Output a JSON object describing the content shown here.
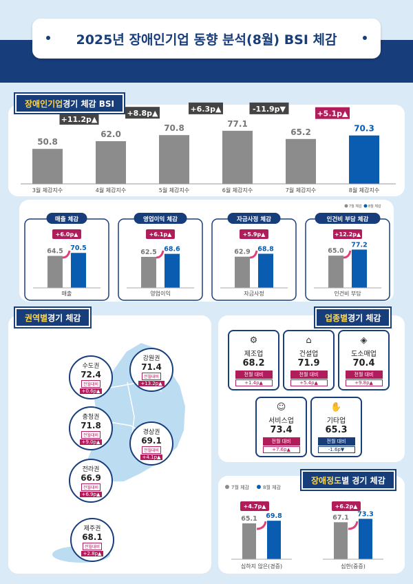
{
  "header": {
    "title": "2025년 장애인기업 동향 분석(8월) BSI 체감"
  },
  "sections": {
    "monthly": {
      "hl": "장애인기업",
      "rest": " 경기 체감 BSI"
    },
    "region": {
      "hl": "권역별",
      "rest": " 경기 체감"
    },
    "industry": {
      "hl": "업종별",
      "rest": " 경기 체감"
    },
    "disability": {
      "hl": "장애정도",
      "rest": "별 경기 체감"
    }
  },
  "chart_data": [
    {
      "type": "bar",
      "title": "장애인기업 경기 체감 BSI",
      "categories": [
        "3월 체감지수",
        "4월 체감지수",
        "5월 체감지수",
        "6월 체감지수",
        "7월 체감지수",
        "8월 체감지수"
      ],
      "values": [
        50.8,
        62.0,
        70.8,
        77.1,
        65.2,
        70.3
      ],
      "labels": [
        "50.8",
        "62.0",
        "70.8",
        "77.1",
        "65.2",
        "70.3"
      ],
      "changes": [
        "+11.2p▲",
        "+8.8p▲",
        "+6.3p▲",
        "-11.9p▼",
        "+5.1p▲"
      ],
      "highlight_color": "#0a5cb0",
      "base_color": "#8c8c8c",
      "ylim": [
        0,
        85
      ]
    },
    {
      "type": "bar",
      "legend": [
        "7월 체감",
        "8월 체감"
      ],
      "legend_position": "top-right",
      "panels": [
        {
          "title": "매출 체감",
          "category": "매출",
          "values": [
            64.5,
            70.5
          ],
          "labels": [
            "64.5",
            "70.5"
          ],
          "change": "+6.0p▲"
        },
        {
          "title": "영업이익 체감",
          "category": "영업이익",
          "values": [
            62.5,
            68.6
          ],
          "labels": [
            "62.5",
            "68.6"
          ],
          "change": "+6.1p▲"
        },
        {
          "title": "자금사정 체감",
          "category": "자금사정",
          "values": [
            62.9,
            68.8
          ],
          "labels": [
            "62.9",
            "68.8"
          ],
          "change": "+5.9p▲"
        },
        {
          "title": "인건비 부담 체감",
          "category": "인건비 부담",
          "values": [
            65.0,
            77.2
          ],
          "labels": [
            "65.0",
            "77.2"
          ],
          "change": "+12.2p▲"
        }
      ]
    },
    {
      "type": "bar",
      "legend": [
        "7월 체감",
        "8월 체감"
      ],
      "legend_position": "top-left",
      "categories": [
        "심하지 않은(경증)",
        "심한(중증)"
      ],
      "series": [
        {
          "name": "7월 체감",
          "values": [
            65.1,
            67.1
          ],
          "labels": [
            "65.1",
            "67.1"
          ]
        },
        {
          "name": "8월 체감",
          "values": [
            69.8,
            73.3
          ],
          "labels": [
            "69.8",
            "73.3"
          ]
        }
      ],
      "changes": [
        "+4.7p▲",
        "+6.2p▲"
      ]
    }
  ],
  "regions": [
    {
      "name": "수도권",
      "value": "72.4",
      "label": "전월대비",
      "delta": "+0.6p▲"
    },
    {
      "name": "강원권",
      "value": "71.4",
      "label": "전월대비",
      "delta": "+13.2p▲"
    },
    {
      "name": "충청권",
      "value": "71.8",
      "label": "전월대비",
      "delta": "+9.0p▲"
    },
    {
      "name": "경상권",
      "value": "69.1",
      "label": "전월대비",
      "delta": "+4.1p▲"
    },
    {
      "name": "전라권",
      "value": "66.9",
      "label": "전월대비",
      "delta": "+6.9p▲"
    },
    {
      "name": "제주권",
      "value": "68.1",
      "label": "전월대비",
      "delta": "+2.8p▲"
    }
  ],
  "industries": [
    {
      "icon": "gear-icon",
      "glyph": "⚙",
      "name": "제조업",
      "value": "68.2",
      "label": "전월 대비",
      "delta": "+1.4p▲"
    },
    {
      "icon": "house-icon",
      "glyph": "⌂",
      "name": "건설업",
      "value": "71.9",
      "label": "전월 대비",
      "delta": "+5.4p▲"
    },
    {
      "icon": "box-icon",
      "glyph": "◈",
      "name": "도소매업",
      "value": "70.4",
      "label": "전월 대비",
      "delta": "+9.8p▲"
    },
    {
      "icon": "smile-icon",
      "glyph": "☺",
      "name": "서비스업",
      "value": "73.4",
      "label": "전월 대비",
      "delta": "+7.6p▲"
    },
    {
      "icon": "hand-icon",
      "glyph": "✋",
      "name": "기타업",
      "value": "65.3",
      "label": "전월 대비",
      "delta": "-1.6p▼"
    }
  ]
}
